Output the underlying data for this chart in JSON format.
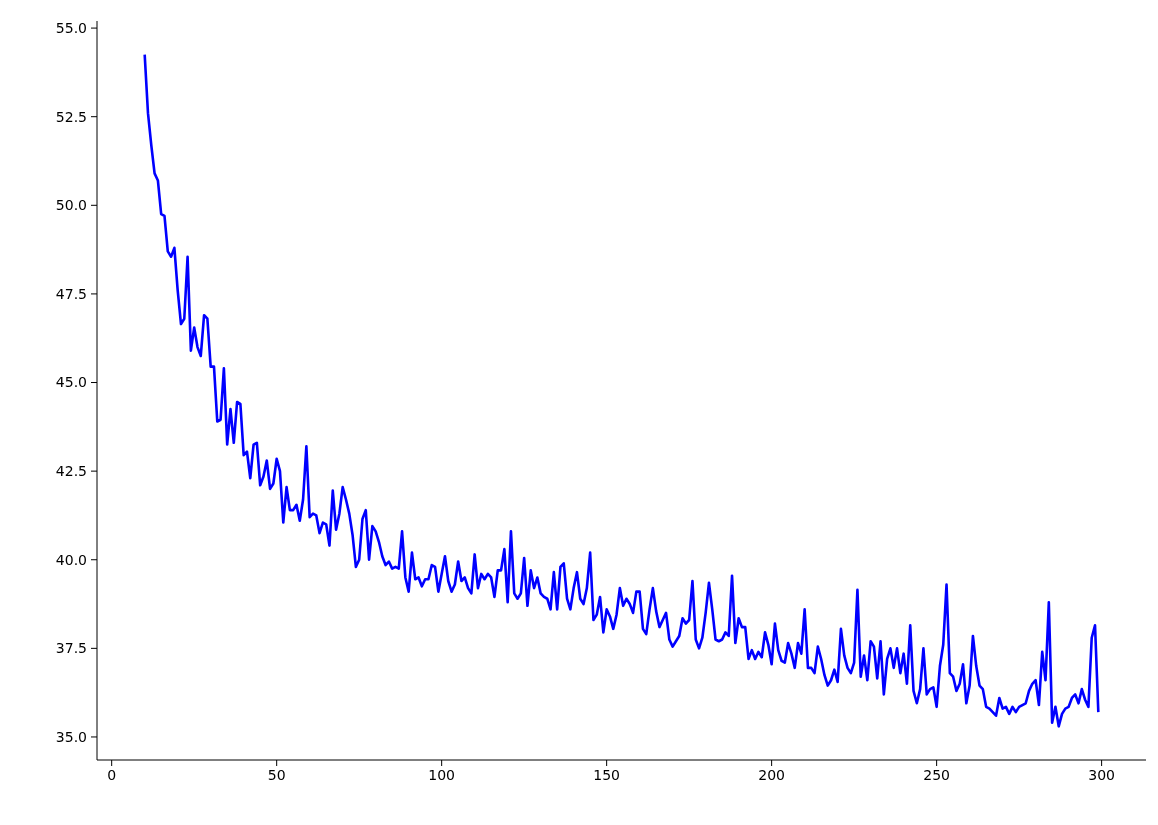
{
  "chart_data": {
    "type": "line",
    "x": [
      10,
      11,
      12,
      13,
      14,
      15,
      16,
      17,
      18,
      19,
      20,
      21,
      22,
      23,
      24,
      25,
      26,
      27,
      28,
      29,
      30,
      31,
      32,
      33,
      34,
      35,
      36,
      37,
      38,
      39,
      40,
      41,
      42,
      43,
      44,
      45,
      46,
      47,
      48,
      49,
      50,
      51,
      52,
      53,
      54,
      55,
      56,
      57,
      58,
      59,
      60,
      61,
      62,
      63,
      64,
      65,
      66,
      67,
      68,
      69,
      70,
      71,
      72,
      73,
      74,
      75,
      76,
      77,
      78,
      79,
      80,
      81,
      82,
      83,
      84,
      85,
      86,
      87,
      88,
      89,
      90,
      91,
      92,
      93,
      94,
      95,
      96,
      97,
      98,
      99,
      100,
      101,
      102,
      103,
      104,
      105,
      106,
      107,
      108,
      109,
      110,
      111,
      112,
      113,
      114,
      115,
      116,
      117,
      118,
      119,
      120,
      121,
      122,
      123,
      124,
      125,
      126,
      127,
      128,
      129,
      130,
      131,
      132,
      133,
      134,
      135,
      136,
      137,
      138,
      139,
      140,
      141,
      142,
      143,
      144,
      145,
      146,
      147,
      148,
      149,
      150,
      151,
      152,
      153,
      154,
      155,
      156,
      157,
      158,
      159,
      160,
      161,
      162,
      163,
      164,
      165,
      166,
      167,
      168,
      169,
      170,
      171,
      172,
      173,
      174,
      175,
      176,
      177,
      178,
      179,
      180,
      181,
      182,
      183,
      184,
      185,
      186,
      187,
      188,
      189,
      190,
      191,
      192,
      193,
      194,
      195,
      196,
      197,
      198,
      199,
      200,
      201,
      202,
      203,
      204,
      205,
      206,
      207,
      208,
      209,
      210,
      211,
      212,
      213,
      214,
      215,
      216,
      217,
      218,
      219,
      220,
      221,
      222,
      223,
      224,
      225,
      226,
      227,
      228,
      229,
      230,
      231,
      232,
      233,
      234,
      235,
      236,
      237,
      238,
      239,
      240,
      241,
      242,
      243,
      244,
      245,
      246,
      247,
      248,
      249,
      250,
      251,
      252,
      253,
      254,
      255,
      256,
      257,
      258,
      259,
      260,
      261,
      262,
      263,
      264,
      265,
      266,
      267,
      268,
      269,
      270,
      271,
      272,
      273,
      274,
      275,
      276,
      277,
      278,
      279,
      280,
      281,
      282,
      283,
      284,
      285,
      286,
      287,
      288,
      289,
      290,
      291,
      292,
      293,
      294,
      295,
      296,
      297,
      298,
      299
    ],
    "series": [
      {
        "color": "#0000ff",
        "values": [
          54.25,
          52.6,
          51.7,
          50.9,
          50.7,
          49.75,
          49.7,
          48.7,
          48.55,
          48.8,
          47.6,
          46.65,
          46.8,
          48.55,
          45.9,
          46.55,
          46.0,
          45.75,
          46.9,
          46.8,
          45.45,
          45.45,
          43.9,
          43.95,
          45.4,
          43.25,
          44.25,
          43.3,
          44.45,
          44.4,
          42.95,
          43.05,
          42.3,
          43.25,
          43.3,
          42.1,
          42.35,
          42.8,
          42.0,
          42.15,
          42.85,
          42.5,
          41.05,
          42.05,
          41.4,
          41.4,
          41.55,
          41.1,
          41.7,
          43.2,
          41.2,
          41.3,
          41.25,
          40.75,
          41.05,
          41.0,
          40.4,
          41.95,
          40.85,
          41.3,
          42.05,
          41.7,
          41.3,
          40.7,
          39.8,
          40.0,
          41.15,
          41.4,
          40.0,
          40.95,
          40.8,
          40.5,
          40.1,
          39.85,
          39.95,
          39.75,
          39.8,
          39.75,
          40.8,
          39.5,
          39.1,
          40.2,
          39.45,
          39.5,
          39.25,
          39.45,
          39.45,
          39.85,
          39.8,
          39.1,
          39.6,
          40.1,
          39.4,
          39.1,
          39.3,
          39.95,
          39.4,
          39.5,
          39.2,
          39.05,
          40.15,
          39.2,
          39.6,
          39.45,
          39.6,
          39.5,
          38.95,
          39.7,
          39.7,
          40.3,
          38.8,
          40.8,
          39.05,
          38.9,
          39.05,
          40.05,
          38.7,
          39.7,
          39.2,
          39.5,
          39.05,
          38.95,
          38.9,
          38.6,
          39.65,
          38.6,
          39.8,
          39.9,
          38.9,
          38.6,
          39.2,
          39.65,
          38.9,
          38.75,
          39.2,
          40.2,
          38.3,
          38.45,
          38.95,
          37.95,
          38.6,
          38.4,
          38.05,
          38.45,
          39.2,
          38.7,
          38.9,
          38.75,
          38.5,
          39.1,
          39.1,
          38.05,
          37.9,
          38.6,
          39.2,
          38.55,
          38.1,
          38.3,
          38.5,
          37.75,
          37.55,
          37.7,
          37.85,
          38.35,
          38.2,
          38.3,
          39.4,
          37.75,
          37.5,
          37.8,
          38.5,
          39.35,
          38.6,
          37.75,
          37.7,
          37.75,
          37.95,
          37.85,
          39.55,
          37.65,
          38.35,
          38.1,
          38.1,
          37.2,
          37.45,
          37.2,
          37.4,
          37.25,
          37.95,
          37.6,
          37.05,
          38.2,
          37.45,
          37.15,
          37.1,
          37.65,
          37.35,
          36.95,
          37.65,
          37.35,
          38.6,
          36.95,
          36.95,
          36.8,
          37.55,
          37.2,
          36.75,
          36.45,
          36.6,
          36.9,
          36.55,
          38.05,
          37.3,
          36.95,
          36.8,
          37.1,
          39.15,
          36.7,
          37.3,
          36.6,
          37.7,
          37.55,
          36.65,
          37.7,
          36.2,
          37.2,
          37.5,
          36.95,
          37.5,
          36.8,
          37.35,
          36.5,
          38.15,
          36.3,
          35.95,
          36.35,
          37.5,
          36.2,
          36.35,
          36.4,
          35.85,
          37.0,
          37.6,
          39.3,
          36.8,
          36.7,
          36.3,
          36.5,
          37.05,
          35.95,
          36.45,
          37.85,
          37.0,
          36.45,
          36.35,
          35.85,
          35.8,
          35.7,
          35.6,
          36.1,
          35.8,
          35.85,
          35.65,
          35.85,
          35.7,
          35.85,
          35.9,
          35.95,
          36.3,
          36.5,
          36.6,
          35.9,
          37.4,
          36.6,
          38.8,
          35.4,
          35.85,
          35.3,
          35.65,
          35.8,
          35.85,
          36.1,
          36.2,
          35.95,
          36.35,
          36.05,
          35.85,
          37.8,
          38.15,
          35.7
        ]
      }
    ],
    "xlim": [
      -4.45,
      313.45
    ],
    "xticks": [
      0,
      50,
      100,
      150,
      200,
      250,
      300
    ],
    "ylim": [
      34.35,
      55.2
    ],
    "yticks": [
      {
        "value": 35,
        "label": "35.0"
      },
      {
        "value": 37.5,
        "label": "37.5"
      },
      {
        "value": 40,
        "label": "40.0"
      },
      {
        "value": 42.5,
        "label": "42.5"
      },
      {
        "value": 45,
        "label": "45.0"
      },
      {
        "value": 47.5,
        "label": "47.5"
      },
      {
        "value": 50,
        "label": "50.0"
      },
      {
        "value": 52.5,
        "label": "52.5"
      },
      {
        "value": 55,
        "label": "55.0"
      }
    ]
  }
}
